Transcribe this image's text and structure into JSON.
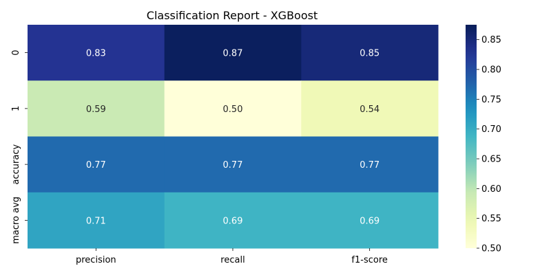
{
  "chart_data": {
    "type": "heatmap",
    "title": "Classification Report - XGBoost",
    "xlabel": "",
    "ylabel": "",
    "columns": [
      "precision",
      "recall",
      "f1-score"
    ],
    "rows": [
      "0",
      "1",
      "accuracy",
      "macro avg"
    ],
    "values": [
      [
        0.83,
        0.87,
        0.85
      ],
      [
        0.59,
        0.5,
        0.54
      ],
      [
        0.77,
        0.77,
        0.77
      ],
      [
        0.71,
        0.69,
        0.69
      ]
    ],
    "labels": [
      [
        "0.83",
        "0.87",
        "0.85"
      ],
      [
        "0.59",
        "0.50",
        "0.54"
      ],
      [
        "0.77",
        "0.77",
        "0.77"
      ],
      [
        "0.71",
        "0.69",
        "0.69"
      ]
    ],
    "colorbar": {
      "min": 0.5,
      "max": 0.875,
      "ticks": [
        0.5,
        0.55,
        0.6,
        0.65,
        0.7,
        0.75,
        0.8,
        0.85
      ],
      "tick_labels": [
        "0.50",
        "0.55",
        "0.60",
        "0.65",
        "0.70",
        "0.75",
        "0.80",
        "0.85"
      ],
      "colormap": "YlGnBu"
    },
    "grid": false,
    "legend": "colorbar-right"
  }
}
